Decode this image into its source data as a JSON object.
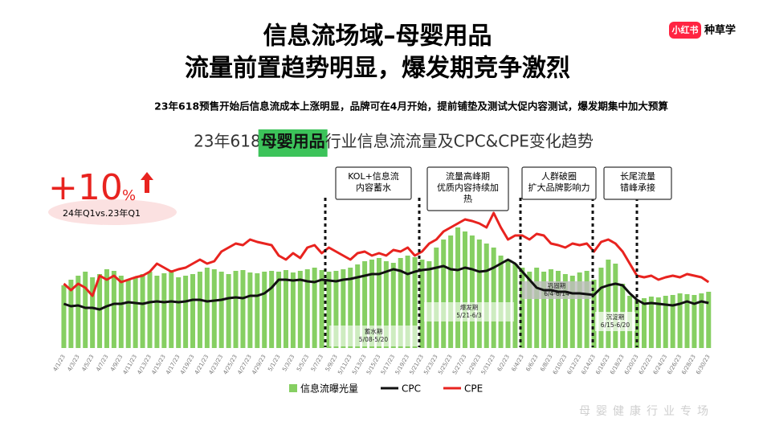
{
  "header": {
    "title": [
      "信息流场域–母婴用品",
      "流量前置趋势明显，爆发期竞争激烈"
    ],
    "subtitle": "23年618预售开始后信息流成本上涨明显，品牌可在4月开始，提前铺垫及测试大促内容测试，爆发期集中加大预算"
  },
  "logo": {
    "brand": "小红书",
    "text": "种草学"
  },
  "badge": {
    "value": "+10",
    "unit": "%",
    "caption": "24年Q1vs.23年Q1"
  },
  "chart_data": {
    "type": "bar",
    "title_parts": [
      "23年618",
      "母婴用品",
      "行业信息流流量及CPC&CPE变化趋势"
    ],
    "categories": [
      "4/1/23",
      null,
      "4/3/23",
      null,
      "4/5/23",
      null,
      "4/7/23",
      null,
      "4/9/23",
      null,
      "4/11/23",
      null,
      "4/13/23",
      null,
      "4/15/23",
      null,
      "4/17/23",
      null,
      "4/19/23",
      null,
      "4/21/23",
      null,
      "4/23/23",
      null,
      "4/25/23",
      null,
      "4/27/23",
      null,
      "4/29/23",
      null,
      "5/1/23",
      null,
      "5/3/23",
      null,
      "5/5/23",
      null,
      "5/7/23",
      null,
      "5/9/23",
      null,
      "5/11/23",
      null,
      "5/13/23",
      null,
      "5/15/23",
      null,
      "5/17/23",
      null,
      "5/19/23",
      null,
      "5/21/23",
      null,
      "5/23/23",
      null,
      "5/25/23",
      null,
      "5/27/23",
      null,
      "5/29/23",
      null,
      "5/31/23",
      null,
      "6/2/23",
      null,
      "6/4/23",
      null,
      "6/6/23",
      null,
      "6/8/23",
      null,
      "6/10/23",
      null,
      "6/12/23",
      null,
      "6/14/23",
      null,
      "6/16/23",
      null,
      "6/18/23",
      null,
      "6/20/23",
      null,
      "6/22/23",
      null,
      "6/24/23",
      null,
      "6/26/23",
      null,
      "6/28/23",
      null,
      "6/30/23"
    ],
    "series": [
      {
        "name": "信息流曝光量",
        "type": "bar",
        "color": "#86cf62",
        "values": [
          78,
          85,
          90,
          95,
          88,
          92,
          98,
          96,
          90,
          85,
          88,
          92,
          95,
          90,
          93,
          97,
          88,
          90,
          92,
          95,
          100,
          98,
          95,
          92,
          96,
          97,
          94,
          93,
          95,
          96,
          95,
          97,
          94,
          96,
          98,
          100,
          97,
          95,
          96,
          98,
          100,
          104,
          108,
          110,
          112,
          108,
          106,
          112,
          115,
          113,
          110,
          108,
          125,
          135,
          140,
          150,
          145,
          140,
          135,
          130,
          125,
          115,
          110,
          105,
          100,
          95,
          100,
          95,
          98,
          96,
          92,
          90,
          94,
          96,
          85,
          100,
          110,
          105,
          80,
          65,
          60,
          62,
          64,
          63,
          65,
          66,
          68,
          67,
          66,
          68,
          70
        ]
      },
      {
        "name": "CPC",
        "type": "line",
        "color": "#111111",
        "values": [
          55,
          52,
          53,
          50,
          50,
          48,
          52,
          55,
          55,
          57,
          56,
          55,
          57,
          58,
          57,
          58,
          57,
          58,
          60,
          60,
          58,
          59,
          60,
          62,
          63,
          62,
          65,
          65,
          68,
          75,
          85,
          85,
          84,
          85,
          83,
          82,
          85,
          84,
          83,
          85,
          86,
          88,
          90,
          92,
          92,
          95,
          98,
          96,
          92,
          95,
          97,
          98,
          100,
          102,
          98,
          97,
          100,
          98,
          95,
          96,
          100,
          105,
          110,
          105,
          95,
          85,
          75,
          72,
          72,
          70,
          70,
          68,
          68,
          67,
          66,
          75,
          78,
          80,
          78,
          68,
          60,
          55,
          56,
          55,
          54,
          53,
          55,
          58,
          55,
          58,
          56
        ]
      },
      {
        "name": "CPE",
        "type": "line",
        "color": "#e8231f",
        "values": [
          80,
          72,
          80,
          75,
          65,
          90,
          85,
          90,
          82,
          85,
          88,
          90,
          95,
          105,
          100,
          95,
          98,
          100,
          105,
          110,
          105,
          108,
          120,
          125,
          130,
          128,
          135,
          132,
          130,
          128,
          115,
          110,
          118,
          112,
          125,
          128,
          118,
          125,
          120,
          115,
          110,
          118,
          120,
          115,
          118,
          115,
          122,
          120,
          125,
          115,
          120,
          130,
          135,
          145,
          150,
          155,
          160,
          158,
          155,
          150,
          168,
          150,
          135,
          140,
          140,
          135,
          142,
          140,
          130,
          128,
          125,
          130,
          128,
          130,
          120,
          132,
          135,
          130,
          120,
          105,
          90,
          88,
          90,
          85,
          88,
          90,
          88,
          92,
          90,
          88,
          82
        ]
      }
    ],
    "annotations": [
      {
        "lines": [
          "KOL+信息流",
          "内容蓄水"
        ]
      },
      {
        "lines": [
          "流量高峰期",
          "优质内容持续加",
          "热"
        ]
      },
      {
        "lines": [
          "人群破圈",
          "扩大品牌影响力"
        ]
      },
      {
        "lines": [
          "长尾流量",
          "错峰承接"
        ]
      }
    ],
    "phases": [
      {
        "name": "蓄水期",
        "range": "5/08-5/20"
      },
      {
        "name": "爆发期",
        "range": "5/21-6/3"
      },
      {
        "name": "巩固期",
        "range": "6/4-6/14"
      },
      {
        "name": "沉淀期",
        "range": "6/15-6/20"
      }
    ]
  },
  "footer": "母婴健康行业专场"
}
